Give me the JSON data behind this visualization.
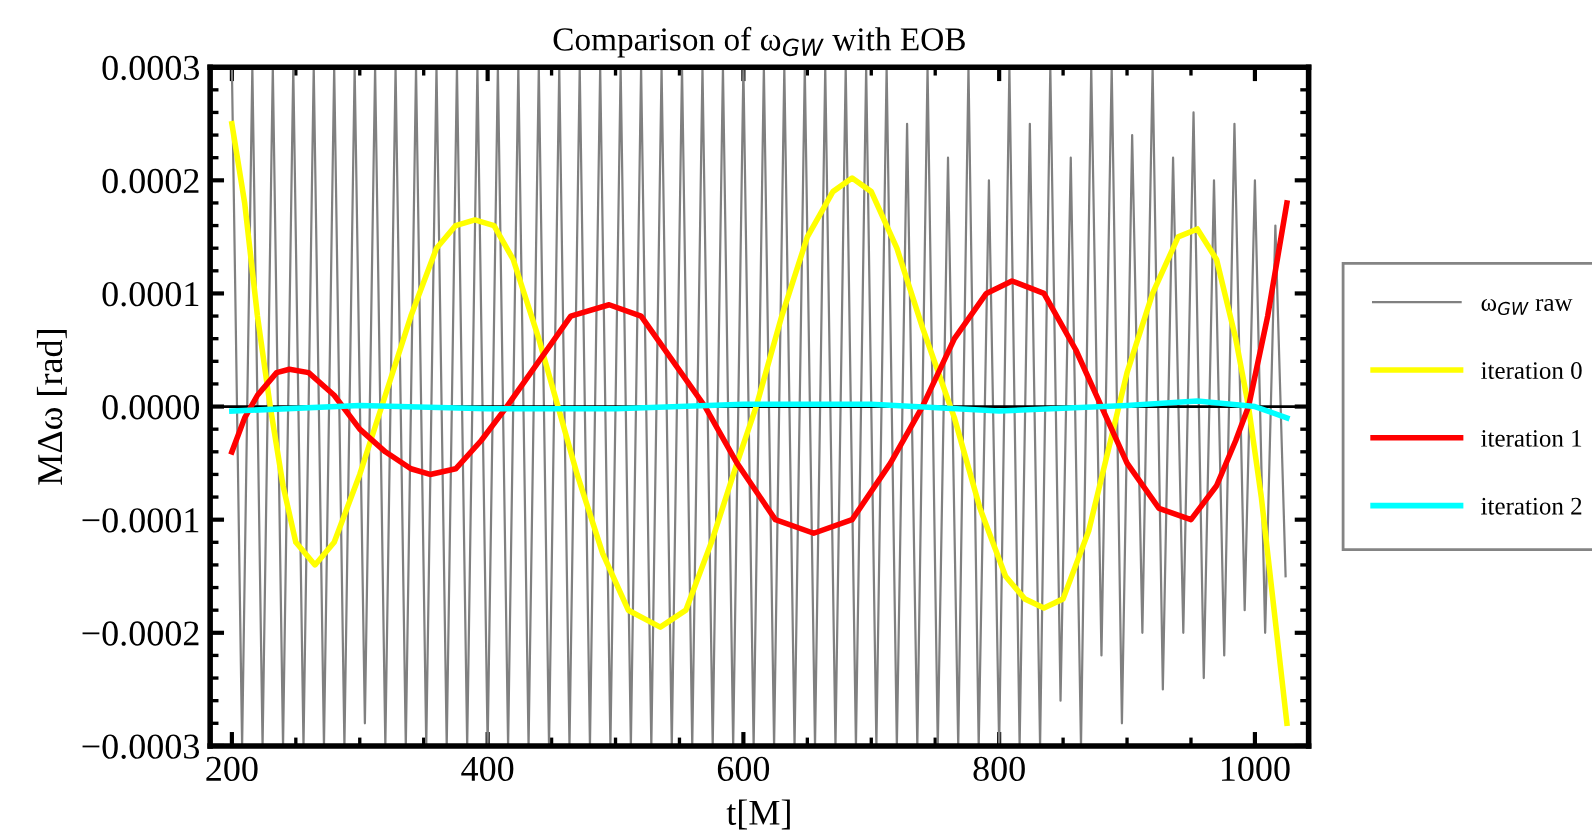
{
  "chart_data": {
    "type": "line",
    "title": "Comparison of ω$_{GW}$ with EOB",
    "xlabel": "t[M]",
    "ylabel": "MΔω [rad]",
    "xlim": [
      183,
      1042
    ],
    "xticks": [
      200,
      400,
      600,
      800,
      1000
    ],
    "ylim": [
      -0.0003,
      0.0003
    ],
    "yticks": [
      {
        "value": -0.0003,
        "label": "−0.0003"
      },
      {
        "value": -0.0002,
        "label": "−0.0002"
      },
      {
        "value": -0.0001,
        "label": "−0.0001"
      },
      {
        "value": 0,
        "label": "0.0000"
      },
      {
        "value": 0.0001,
        "label": "0.0001"
      },
      {
        "value": 0.0002,
        "label": "0.0002"
      },
      {
        "value": 0.0003,
        "label": "0.0003"
      }
    ],
    "grid": false,
    "legend": "right",
    "line_style": "solid",
    "marker": "none",
    "ref_lines": [
      {
        "axis": "y",
        "value": 0,
        "color": "#000000"
      }
    ],
    "series": [
      {
        "name": "ω$_{GW}$ raw",
        "color": "#808080",
        "x": [
          200,
          208,
          216,
          224,
          232,
          240,
          248,
          256,
          264,
          272,
          280,
          288,
          296,
          304,
          312,
          320,
          328,
          336,
          344,
          352,
          360,
          368,
          376,
          384,
          392,
          400,
          408,
          416,
          424,
          432,
          440,
          448,
          456,
          464,
          472,
          480,
          488,
          496,
          504,
          512,
          520,
          528,
          536,
          544,
          552,
          560,
          568,
          576,
          584,
          592,
          600,
          608,
          616,
          624,
          632,
          640,
          648,
          656,
          664,
          672,
          680,
          688,
          696,
          704,
          712,
          720,
          728,
          736,
          744,
          752,
          760,
          768,
          776,
          784,
          792,
          800,
          808,
          816,
          824,
          832,
          840,
          848,
          856,
          864,
          872,
          880,
          888,
          896,
          904,
          912,
          920,
          928,
          936,
          944,
          952,
          960,
          968,
          976,
          984,
          992,
          1000,
          1008,
          1016,
          1024
        ],
        "values": [
          0.0003,
          -0.0003,
          0.0003,
          -0.0003,
          0.0003,
          -0.0003,
          0.0003,
          -0.0003,
          0.0003,
          -0.0003,
          0.0003,
          -0.0003,
          0.0003,
          -0.00028,
          0.0003,
          -0.0003,
          0.0003,
          -0.0003,
          0.0003,
          -0.0003,
          0.0003,
          -0.0003,
          0.0003,
          -0.0003,
          0.0003,
          -0.0003,
          0.0003,
          -0.0003,
          0.0003,
          -0.0003,
          0.0003,
          -0.0003,
          0.0003,
          -0.0003,
          0.0003,
          -0.0003,
          0.0003,
          -0.0003,
          0.0003,
          -0.0003,
          0.0003,
          -0.0003,
          0.0003,
          -0.0003,
          0.0003,
          -0.0003,
          0.0003,
          -0.0003,
          0.0003,
          -0.0003,
          0.0003,
          -0.0003,
          0.0003,
          -0.0003,
          0.0003,
          -0.0003,
          0.0003,
          -0.0003,
          0.0003,
          -0.0003,
          0.0003,
          -0.0003,
          0.0003,
          -0.0003,
          0.0003,
          -0.0003,
          0.00025,
          -0.0003,
          0.0003,
          -0.0003,
          0.00022,
          -0.0003,
          0.0003,
          -0.0003,
          0.0002,
          -0.0003,
          0.0003,
          -0.0003,
          0.00025,
          -0.0003,
          0.0003,
          -0.00026,
          0.00022,
          -0.0003,
          0.0003,
          -0.00022,
          0.0003,
          -0.00028,
          0.00024,
          -0.0002,
          0.0003,
          -0.00025,
          0.00022,
          -0.0002,
          0.00026,
          -0.00024,
          0.0002,
          -0.00022,
          0.00025,
          -0.00018,
          0.0002,
          -0.0002,
          0.00016,
          -0.00015
        ]
      },
      {
        "name": "iteration 0",
        "color": "#ffff00",
        "x": [
          200,
          210,
          220,
          230,
          240,
          250,
          265,
          280,
          300,
          320,
          340,
          360,
          375,
          390,
          405,
          420,
          440,
          455,
          470,
          490,
          510,
          535,
          555,
          575,
          595,
          610,
          630,
          650,
          670,
          685,
          700,
          720,
          740,
          765,
          785,
          805,
          820,
          835,
          850,
          870,
          885,
          900,
          920,
          940,
          955,
          970,
          985,
          995,
          1005,
          1015,
          1025
        ],
        "values": [
          0.00025,
          0.00018,
          8e-05,
          0.0,
          -7e-05,
          -0.00012,
          -0.00014,
          -0.00012,
          -6e-05,
          1e-05,
          8e-05,
          0.00014,
          0.00016,
          0.000165,
          0.00016,
          0.00013,
          6e-05,
          0.0,
          -6e-05,
          -0.00013,
          -0.00018,
          -0.000195,
          -0.00018,
          -0.00012,
          -5e-05,
          0.0,
          8e-05,
          0.00015,
          0.00019,
          0.000202,
          0.00019,
          0.00014,
          7e-05,
          -1e-05,
          -9e-05,
          -0.00015,
          -0.00017,
          -0.000178,
          -0.00017,
          -0.00011,
          -4e-05,
          3e-05,
          0.0001,
          0.00015,
          0.000157,
          0.00013,
          6e-05,
          0.0,
          -8e-05,
          -0.00018,
          -0.00028
        ]
      },
      {
        "name": "iteration 1",
        "color": "#ff0000",
        "x": [
          200,
          210,
          220,
          235,
          245,
          260,
          280,
          300,
          320,
          340,
          355,
          375,
          395,
          415,
          440,
          465,
          495,
          520,
          545,
          570,
          595,
          625,
          655,
          685,
          715,
          740,
          765,
          790,
          810,
          835,
          860,
          880,
          900,
          925,
          950,
          970,
          985,
          995,
          1010,
          1025
        ],
        "values": [
          -4e-05,
          -1e-05,
          1e-05,
          3e-05,
          3.3e-05,
          3e-05,
          1e-05,
          -2e-05,
          -4e-05,
          -5.5e-05,
          -6e-05,
          -5.5e-05,
          -3e-05,
          0.0,
          4e-05,
          8e-05,
          9e-05,
          8e-05,
          4e-05,
          0.0,
          -5e-05,
          -0.0001,
          -0.000112,
          -0.0001,
          -5e-05,
          0.0,
          6e-05,
          0.0001,
          0.000111,
          0.0001,
          5e-05,
          0.0,
          -5e-05,
          -9e-05,
          -0.0001,
          -7e-05,
          -3e-05,
          0.0,
          8e-05,
          0.00018
        ]
      },
      {
        "name": "iteration 2",
        "color": "#00ffff",
        "x": [
          200,
          300,
          400,
          500,
          600,
          700,
          800,
          900,
          955,
          1000,
          1025
        ],
        "values": [
          -4e-06,
          1e-06,
          -2e-06,
          -2e-06,
          2e-06,
          2e-06,
          -4e-06,
          1e-06,
          5e-06,
          0.0,
          -1e-05
        ]
      }
    ]
  }
}
